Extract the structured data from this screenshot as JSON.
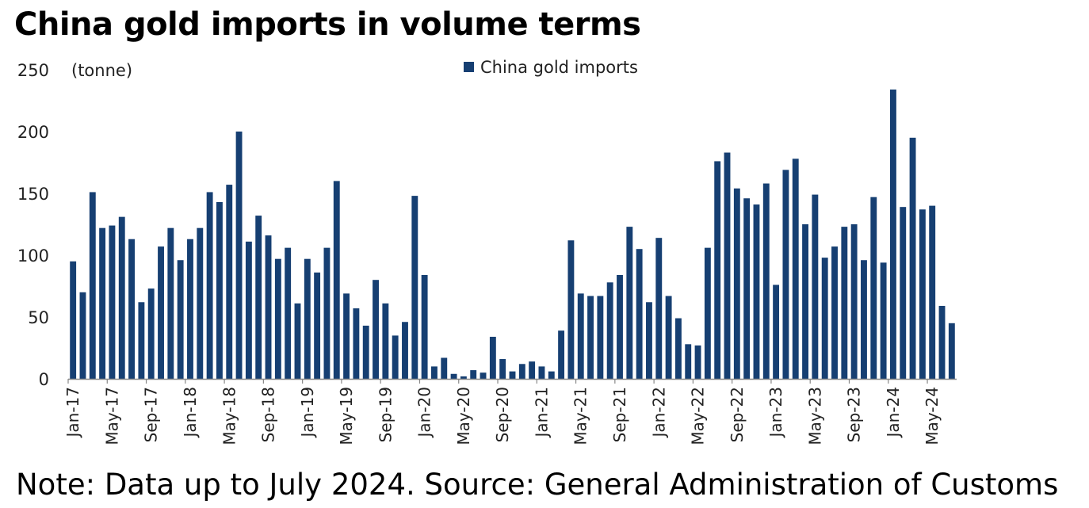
{
  "title": "China gold imports in volume terms",
  "note": "Note: Data up to July 2024. Source: General Administration of Customs",
  "colors": {
    "bar": "#163f72",
    "axis": "#888888"
  },
  "chart_data": {
    "type": "bar",
    "ylabel": "(tonne)",
    "ylim": [
      0,
      250
    ],
    "yticks": [
      0,
      50,
      100,
      150,
      200,
      250
    ],
    "legend": {
      "position": "top-center"
    },
    "grid": false,
    "series": [
      {
        "name": "China gold imports",
        "x": [
          "Jan-17",
          "Feb-17",
          "Mar-17",
          "Apr-17",
          "May-17",
          "Jun-17",
          "Jul-17",
          "Aug-17",
          "Sep-17",
          "Oct-17",
          "Nov-17",
          "Dec-17",
          "Jan-18",
          "Feb-18",
          "Mar-18",
          "Apr-18",
          "May-18",
          "Jun-18",
          "Jul-18",
          "Aug-18",
          "Sep-18",
          "Oct-18",
          "Nov-18",
          "Dec-18",
          "Jan-19",
          "Feb-19",
          "Mar-19",
          "Apr-19",
          "May-19",
          "Jun-19",
          "Jul-19",
          "Aug-19",
          "Sep-19",
          "Oct-19",
          "Nov-19",
          "Dec-19",
          "Jan-20",
          "Feb-20",
          "Mar-20",
          "Apr-20",
          "May-20",
          "Jun-20",
          "Jul-20",
          "Aug-20",
          "Sep-20",
          "Oct-20",
          "Nov-20",
          "Dec-20",
          "Jan-21",
          "Feb-21",
          "Mar-21",
          "Apr-21",
          "May-21",
          "Jun-21",
          "Jul-21",
          "Aug-21",
          "Sep-21",
          "Oct-21",
          "Nov-21",
          "Dec-21",
          "Jan-22",
          "Feb-22",
          "Mar-22",
          "Apr-22",
          "May-22",
          "Jun-22",
          "Jul-22",
          "Aug-22",
          "Sep-22",
          "Oct-22",
          "Nov-22",
          "Dec-22",
          "Jan-23",
          "Feb-23",
          "Mar-23",
          "Apr-23",
          "May-23",
          "Jun-23",
          "Jul-23",
          "Aug-23",
          "Sep-23",
          "Oct-23",
          "Nov-23",
          "Dec-23",
          "Jan-24",
          "Feb-24",
          "Mar-24",
          "Apr-24",
          "May-24",
          "Jun-24",
          "Jul-24"
        ],
        "values": [
          95,
          70,
          151,
          122,
          124,
          131,
          113,
          62,
          73,
          107,
          122,
          96,
          113,
          122,
          151,
          143,
          157,
          200,
          111,
          132,
          116,
          97,
          106,
          61,
          97,
          86,
          106,
          160,
          69,
          57,
          43,
          80,
          61,
          35,
          46,
          148,
          84,
          10,
          17,
          4,
          2,
          7,
          5,
          34,
          16,
          6,
          12,
          14,
          10,
          6,
          39,
          112,
          69,
          67,
          67,
          78,
          84,
          123,
          105,
          62,
          114,
          67,
          49,
          28,
          27,
          106,
          176,
          183,
          154,
          146,
          141,
          158,
          76,
          169,
          178,
          125,
          149,
          98,
          107,
          123,
          125,
          96,
          147,
          94,
          234,
          139,
          195,
          137,
          140,
          59,
          45
        ]
      }
    ],
    "x_tick_labels": [
      "Jan-17",
      "May-17",
      "Sep-17",
      "Jan-18",
      "May-18",
      "Sep-18",
      "Jan-19",
      "May-19",
      "Sep-19",
      "Jan-20",
      "May-20",
      "Sep-20",
      "Jan-21",
      "May-21",
      "Sep-21",
      "Jan-22",
      "May-22",
      "Sep-22",
      "Jan-23",
      "May-23",
      "Sep-23",
      "Jan-24",
      "May-24"
    ]
  }
}
